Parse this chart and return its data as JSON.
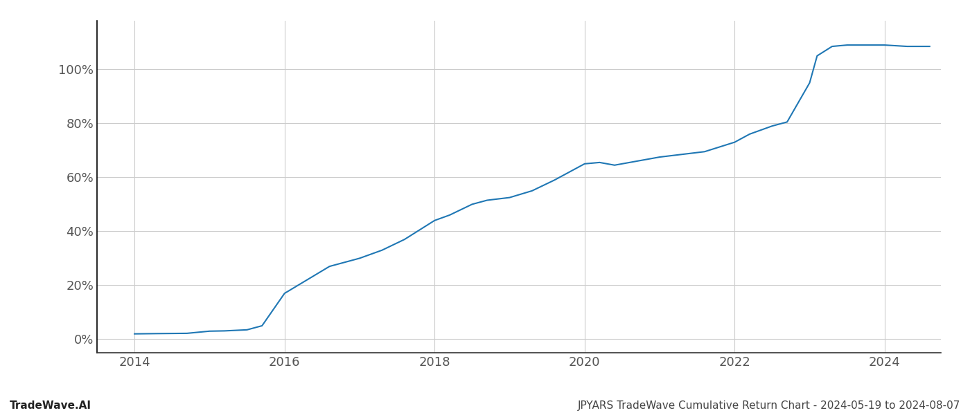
{
  "x": [
    2014.0,
    2014.3,
    2014.7,
    2015.0,
    2015.2,
    2015.5,
    2015.7,
    2016.0,
    2016.3,
    2016.6,
    2017.0,
    2017.3,
    2017.6,
    2018.0,
    2018.2,
    2018.5,
    2018.7,
    2019.0,
    2019.3,
    2019.6,
    2020.0,
    2020.2,
    2020.4,
    2020.6,
    2021.0,
    2021.3,
    2021.6,
    2022.0,
    2022.2,
    2022.5,
    2022.7,
    2023.0,
    2023.1,
    2023.3,
    2023.5,
    2023.7,
    2024.0,
    2024.3,
    2024.6
  ],
  "y": [
    2.0,
    2.1,
    2.2,
    3.0,
    3.1,
    3.5,
    5.0,
    17.0,
    22.0,
    27.0,
    30.0,
    33.0,
    37.0,
    44.0,
    46.0,
    50.0,
    51.5,
    52.5,
    55.0,
    59.0,
    65.0,
    65.5,
    64.5,
    65.5,
    67.5,
    68.5,
    69.5,
    73.0,
    76.0,
    79.0,
    80.5,
    95.0,
    105.0,
    108.5,
    109.0,
    109.0,
    109.0,
    108.5,
    108.5
  ],
  "line_color": "#1f77b4",
  "line_width": 1.5,
  "xlim": [
    2013.5,
    2024.75
  ],
  "ylim": [
    -5,
    118
  ],
  "yticks": [
    0,
    20,
    40,
    60,
    80,
    100
  ],
  "xticks": [
    2014,
    2016,
    2018,
    2020,
    2022,
    2024
  ],
  "grid_color": "#cccccc",
  "grid_alpha": 1.0,
  "bg_color": "#ffffff",
  "footer_left": "TradeWave.AI",
  "footer_right": "JPYARS TradeWave Cumulative Return Chart - 2024-05-19 to 2024-08-07",
  "footer_fontsize": 11,
  "tick_fontsize": 13,
  "left_spine_color": "#000000",
  "bottom_spine_color": "#333333"
}
